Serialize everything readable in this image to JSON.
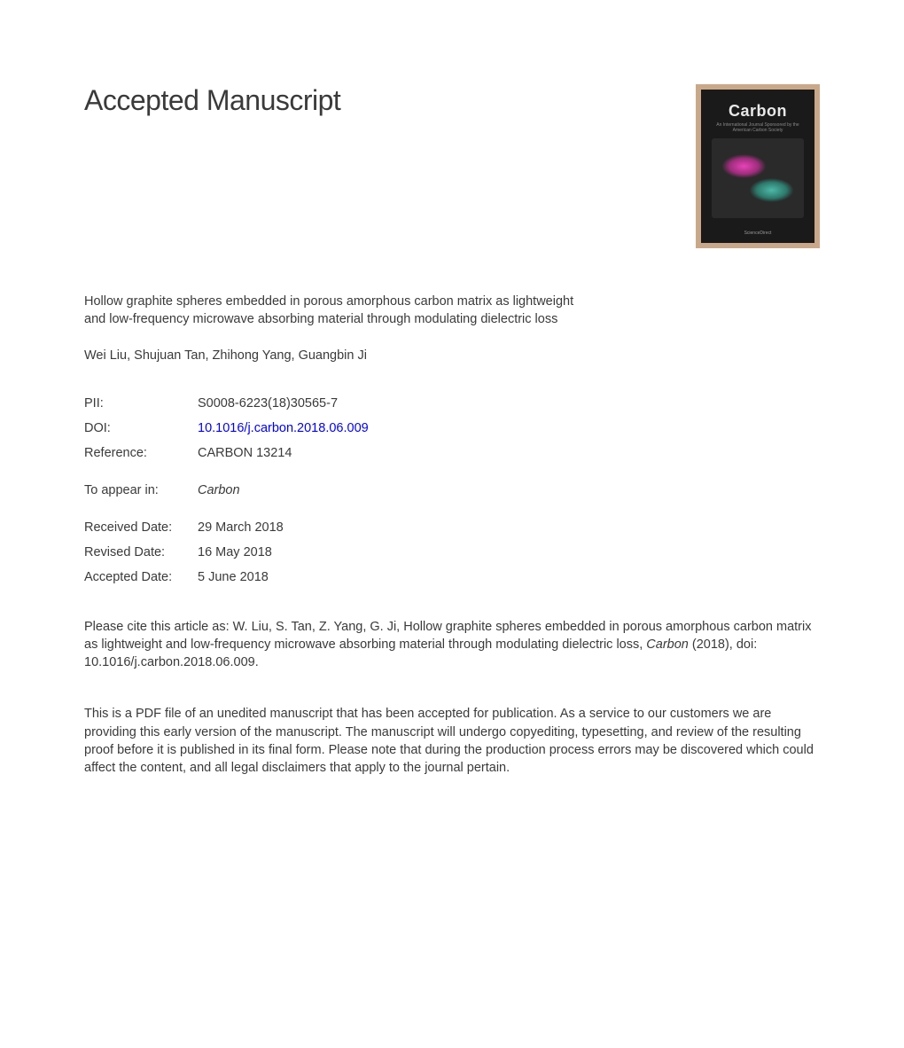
{
  "heading": "Accepted Manuscript",
  "journal_cover": {
    "title": "Carbon",
    "subtitle": "An International Journal Sponsored by the American Carbon Society",
    "footer": "ScienceDirect"
  },
  "article_title": "Hollow graphite spheres embedded in porous amorphous carbon matrix as lightweight and low-frequency microwave absorbing material through modulating dielectric loss",
  "authors": "Wei Liu, Shujuan Tan, Zhihong Yang, Guangbin Ji",
  "meta": {
    "pii_label": "PII:",
    "pii_value": "S0008-6223(18)30565-7",
    "doi_label": "DOI:",
    "doi_value": "10.1016/j.carbon.2018.06.009",
    "reference_label": "Reference:",
    "reference_value": "CARBON 13214",
    "appear_label": "To appear in:",
    "appear_value": "Carbon",
    "received_label": "Received Date:",
    "received_value": "29 March 2018",
    "revised_label": "Revised Date:",
    "revised_value": "16 May 2018",
    "accepted_label": "Accepted Date:",
    "accepted_value": "5 June 2018"
  },
  "citation": {
    "prefix": "Please cite this article as: W. Liu, S. Tan, Z. Yang, G. Ji, Hollow graphite spheres embedded in porous amorphous carbon matrix as lightweight and low-frequency microwave absorbing material through modulating dielectric loss, ",
    "journal": "Carbon",
    "suffix": " (2018), doi: 10.1016/j.carbon.2018.06.009."
  },
  "disclaimer": "This is a PDF file of an unedited manuscript that has been accepted for publication. As a service to our customers we are providing this early version of the manuscript. The manuscript will undergo copyediting, typesetting, and review of the resulting proof before it is published in its final form. Please note that during the production process errors may be discovered which could affect the content, and all legal disclaimers that apply to the journal pertain."
}
